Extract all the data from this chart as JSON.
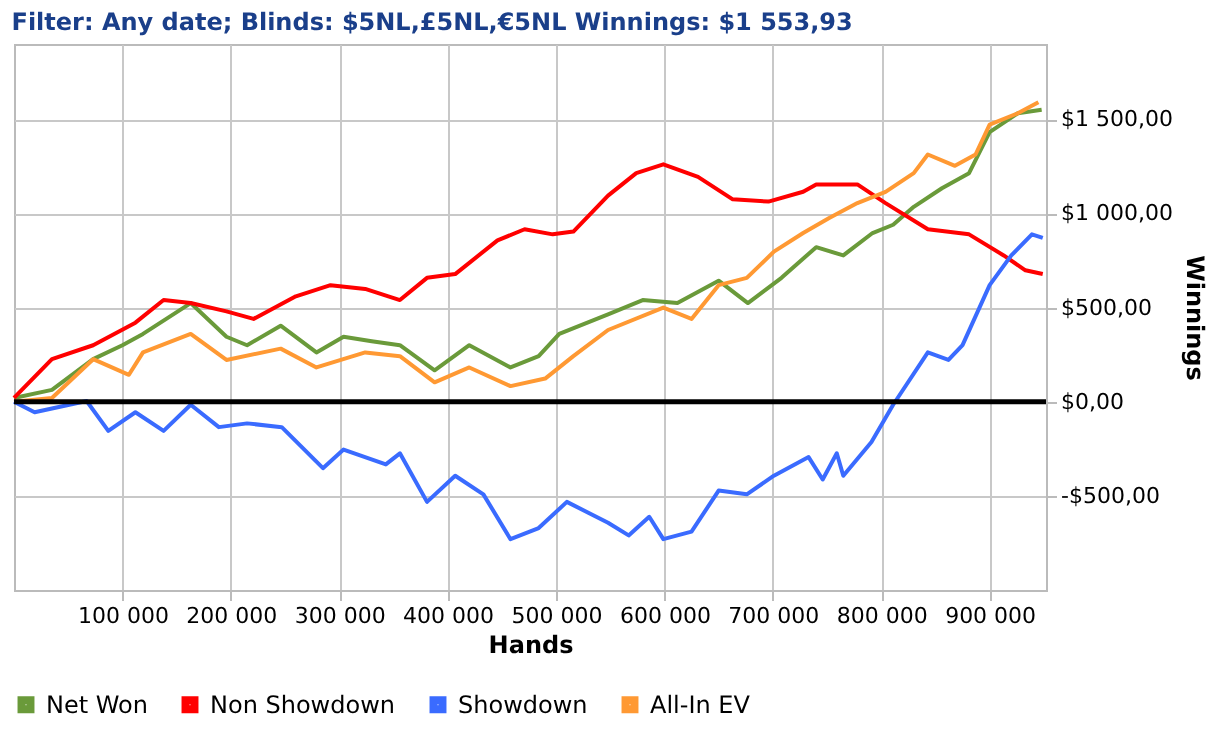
{
  "chart_data": {
    "type": "line",
    "title": "Filter: Any date; Blinds: $5NL,£5NL,€5NL Winnings: $1 553,93",
    "xlabel": "Hands",
    "ylabel": "Winnings",
    "xlim": [
      0,
      952000
    ],
    "ylim": [
      -1000,
      1900
    ],
    "xticks": [
      {
        "value": 100000,
        "label": "100 000"
      },
      {
        "value": 200000,
        "label": "200 000"
      },
      {
        "value": 300000,
        "label": "300 000"
      },
      {
        "value": 400000,
        "label": "400 000"
      },
      {
        "value": 500000,
        "label": "500 000"
      },
      {
        "value": 600000,
        "label": "600 000"
      },
      {
        "value": 700000,
        "label": "700 000"
      },
      {
        "value": 800000,
        "label": "800 000"
      },
      {
        "value": 900000,
        "label": "900 000"
      }
    ],
    "yticks": [
      {
        "value": -500,
        "label": "-$500,00"
      },
      {
        "value": 0,
        "label": "$0,00"
      },
      {
        "value": 500,
        "label": "$500,00"
      },
      {
        "value": 1000,
        "label": "$1 000,00"
      },
      {
        "value": 1500,
        "label": "$1 500,00"
      }
    ],
    "grid": true,
    "legend": "bottom",
    "marker": "none",
    "line_style": "solid",
    "ref_lines": [
      {
        "axis": "y",
        "value": 0,
        "color": "#000000"
      }
    ],
    "series": [
      {
        "name": "Net Won",
        "color": "#6a9a3a",
        "x": [
          0,
          35000,
          73000,
          100000,
          119000,
          163000,
          196000,
          215000,
          246000,
          279000,
          304000,
          330000,
          356000,
          388000,
          420000,
          458000,
          484000,
          503000,
          548000,
          580000,
          612000,
          650000,
          677000,
          708000,
          740000,
          765000,
          792000,
          811000,
          830000,
          856000,
          881000,
          900000,
          926000,
          948000
        ],
        "values": [
          20,
          63,
          226,
          300,
          360,
          524,
          345,
          300,
          404,
          262,
          345,
          321,
          300,
          167,
          300,
          182,
          242,
          360,
          464,
          540,
          524,
          643,
          524,
          658,
          821,
          777,
          896,
          940,
          1035,
          1134,
          1214,
          1432,
          1532,
          1551
        ]
      },
      {
        "name": "Non Showdown",
        "color": "#ff0000",
        "x": [
          0,
          35000,
          73000,
          112000,
          138000,
          163000,
          196000,
          221000,
          260000,
          292000,
          324000,
          356000,
          381000,
          407000,
          446000,
          471000,
          497000,
          516000,
          548000,
          574000,
          599000,
          631000,
          663000,
          696000,
          728000,
          740000,
          778000,
          804000,
          843000,
          881000,
          913000,
          933000,
          949000
        ],
        "values": [
          20,
          226,
          300,
          420,
          540,
          524,
          480,
          440,
          560,
          619,
          599,
          540,
          658,
          678,
          857,
          916,
          889,
          904,
          1095,
          1214,
          1261,
          1194,
          1075,
          1063,
          1115,
          1154,
          1154,
          1055,
          916,
          889,
          777,
          698,
          678
        ]
      },
      {
        "name": "Showdown",
        "color": "#3a6bff",
        "x": [
          0,
          19000,
          67000,
          87000,
          112000,
          138000,
          163000,
          189000,
          215000,
          247000,
          285000,
          304000,
          343000,
          356000,
          381000,
          407000,
          433000,
          458000,
          484000,
          510000,
          548000,
          567000,
          586000,
          599000,
          625000,
          650000,
          676000,
          701000,
          733000,
          746000,
          759000,
          765000,
          791000,
          811000,
          843000,
          862000,
          875000,
          900000,
          920000,
          939000,
          949000
        ],
        "values": [
          0,
          -56,
          4,
          -155,
          -56,
          -155,
          -16,
          -135,
          -115,
          -135,
          -353,
          -254,
          -333,
          -274,
          -532,
          -393,
          -492,
          -730,
          -671,
          -532,
          -643,
          -710,
          -611,
          -730,
          -690,
          -472,
          -492,
          -393,
          -294,
          -413,
          -274,
          -393,
          -214,
          -16,
          262,
          222,
          301,
          619,
          777,
          889,
          870
        ]
      },
      {
        "name": "All-In EV",
        "color": "#ff9933",
        "x": [
          0,
          35000,
          73000,
          106000,
          119000,
          163000,
          196000,
          246000,
          279000,
          324000,
          356000,
          388000,
          420000,
          458000,
          490000,
          516000,
          548000,
          599000,
          625000,
          650000,
          676000,
          701000,
          728000,
          752000,
          778000,
          804000,
          830000,
          843000,
          868000,
          887000,
          900000,
          926000,
          945000
        ],
        "values": [
          0,
          20,
          226,
          143,
          262,
          360,
          222,
          282,
          182,
          262,
          242,
          103,
          182,
          83,
          123,
          242,
          381,
          500,
          440,
          619,
          658,
          797,
          896,
          976,
          1055,
          1115,
          1214,
          1313,
          1253,
          1313,
          1472,
          1532,
          1591
        ]
      }
    ]
  }
}
